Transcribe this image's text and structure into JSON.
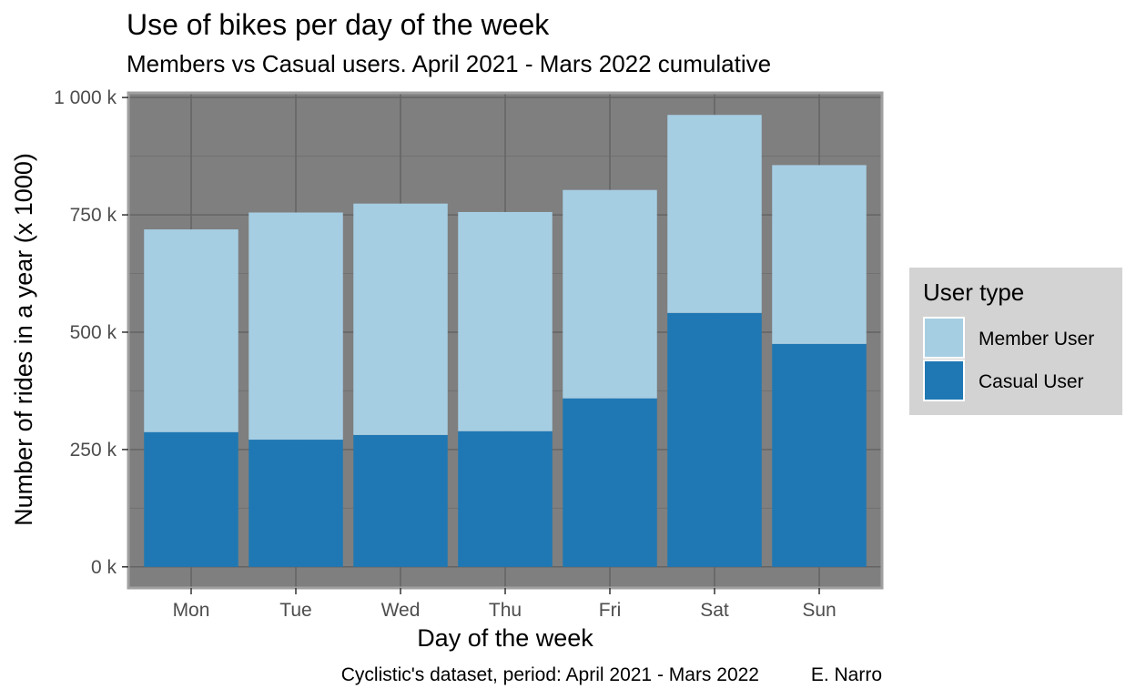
{
  "chart_data": {
    "type": "bar",
    "stacked": true,
    "title": "Use of bikes per day of the week",
    "subtitle": "Members vs Casual users. April 2021 - Mars 2022 cumulative",
    "xlabel": "Day of the week",
    "ylabel": "Number of rides in a year (x 1000)",
    "caption": "Cyclistic's dataset, period: April 2021 - Mars 2022",
    "caption_author": "E. Narro",
    "categories": [
      "Mon",
      "Tue",
      "Wed",
      "Thu",
      "Fri",
      "Sat",
      "Sun"
    ],
    "y_ticks": [
      0,
      250,
      500,
      750,
      1000
    ],
    "y_tick_labels": [
      "0 k",
      "250 k",
      "500 k",
      "750 k",
      "1 000 k"
    ],
    "ylim": [
      -45,
      1010
    ],
    "grid": true,
    "legend": {
      "title": "User type",
      "position": "right"
    },
    "series": [
      {
        "name": "Casual User",
        "color": "#1f78b4",
        "values": [
          287,
          271,
          281,
          289,
          359,
          541,
          475
        ]
      },
      {
        "name": "Member User",
        "color": "#a6cee3",
        "values": [
          432,
          484,
          493,
          467,
          444,
          422,
          381
        ]
      }
    ],
    "colors": {
      "panel_background": "#7f7f7f",
      "panel_border": "#a0a0a0",
      "grid_major": "#646464",
      "grid_minor": "#717171",
      "legend_background": "#d3d3d3"
    }
  }
}
